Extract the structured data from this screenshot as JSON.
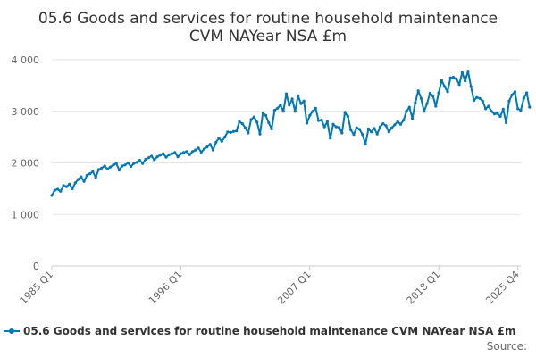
{
  "chart_data": {
    "type": "line",
    "title_line1": "05.6 Goods and services for routine household maintenance",
    "title_line2": "CVM NAYear NSA £m",
    "ylim": [
      0,
      4000
    ],
    "y_ticks": [
      {
        "value": 0,
        "label": "0"
      },
      {
        "value": 1000,
        "label": "1 000"
      },
      {
        "value": 2000,
        "label": "2 000"
      },
      {
        "value": 3000,
        "label": "3 000"
      },
      {
        "value": 4000,
        "label": "4 000"
      }
    ],
    "x_range": [
      0,
      160
    ],
    "x_ticks": [
      {
        "index": 0,
        "label": "1985 Q1"
      },
      {
        "index": 44,
        "label": "1996 Q1"
      },
      {
        "index": 88,
        "label": "2007 Q1"
      },
      {
        "index": 132,
        "label": "2018 Q1"
      },
      {
        "index": 159,
        "label": "2025 Q4"
      }
    ],
    "grid": true,
    "legend_position": "bottom",
    "series": [
      {
        "name": "05.6 Goods and services for routine household maintenance CVM NAYear NSA £m",
        "color": "#0077b6",
        "start": "1985 Q1",
        "values": [
          1370,
          1470,
          1490,
          1450,
          1560,
          1540,
          1590,
          1500,
          1610,
          1680,
          1730,
          1640,
          1760,
          1790,
          1830,
          1720,
          1870,
          1900,
          1940,
          1880,
          1920,
          1960,
          1990,
          1860,
          1940,
          1960,
          2000,
          1930,
          1990,
          2010,
          2050,
          1990,
          2070,
          2100,
          2130,
          2060,
          2120,
          2150,
          2180,
          2110,
          2160,
          2180,
          2200,
          2120,
          2180,
          2200,
          2220,
          2160,
          2220,
          2250,
          2290,
          2210,
          2270,
          2310,
          2360,
          2250,
          2400,
          2480,
          2420,
          2500,
          2600,
          2590,
          2610,
          2620,
          2800,
          2760,
          2680,
          2580,
          2840,
          2890,
          2790,
          2560,
          2970,
          2920,
          2780,
          2660,
          3020,
          3060,
          3120,
          3000,
          3340,
          3120,
          3240,
          3000,
          3300,
          3150,
          3200,
          2770,
          2920,
          3000,
          3060,
          2820,
          2830,
          2700,
          2800,
          2480,
          2750,
          2700,
          2690,
          2580,
          2980,
          2900,
          2640,
          2550,
          2680,
          2650,
          2550,
          2360,
          2660,
          2600,
          2670,
          2560,
          2700,
          2760,
          2720,
          2600,
          2680,
          2740,
          2800,
          2750,
          2830,
          3000,
          3080,
          2860,
          3170,
          3400,
          3250,
          3000,
          3150,
          3350,
          3300,
          3100,
          3360,
          3600,
          3480,
          3380,
          3650,
          3660,
          3630,
          3520,
          3750,
          3590,
          3780,
          3480,
          3210,
          3270,
          3250,
          3200,
          3050,
          3100,
          3000,
          2950,
          2960,
          2900,
          3040,
          2780,
          3200,
          3320,
          3380,
          3050,
          3020,
          3250,
          3360,
          3080
        ]
      }
    ],
    "source_label": "Source:"
  },
  "colors": {
    "series": "#0077b6",
    "grid": "#e6e6e6",
    "axis": "#cccccc"
  }
}
